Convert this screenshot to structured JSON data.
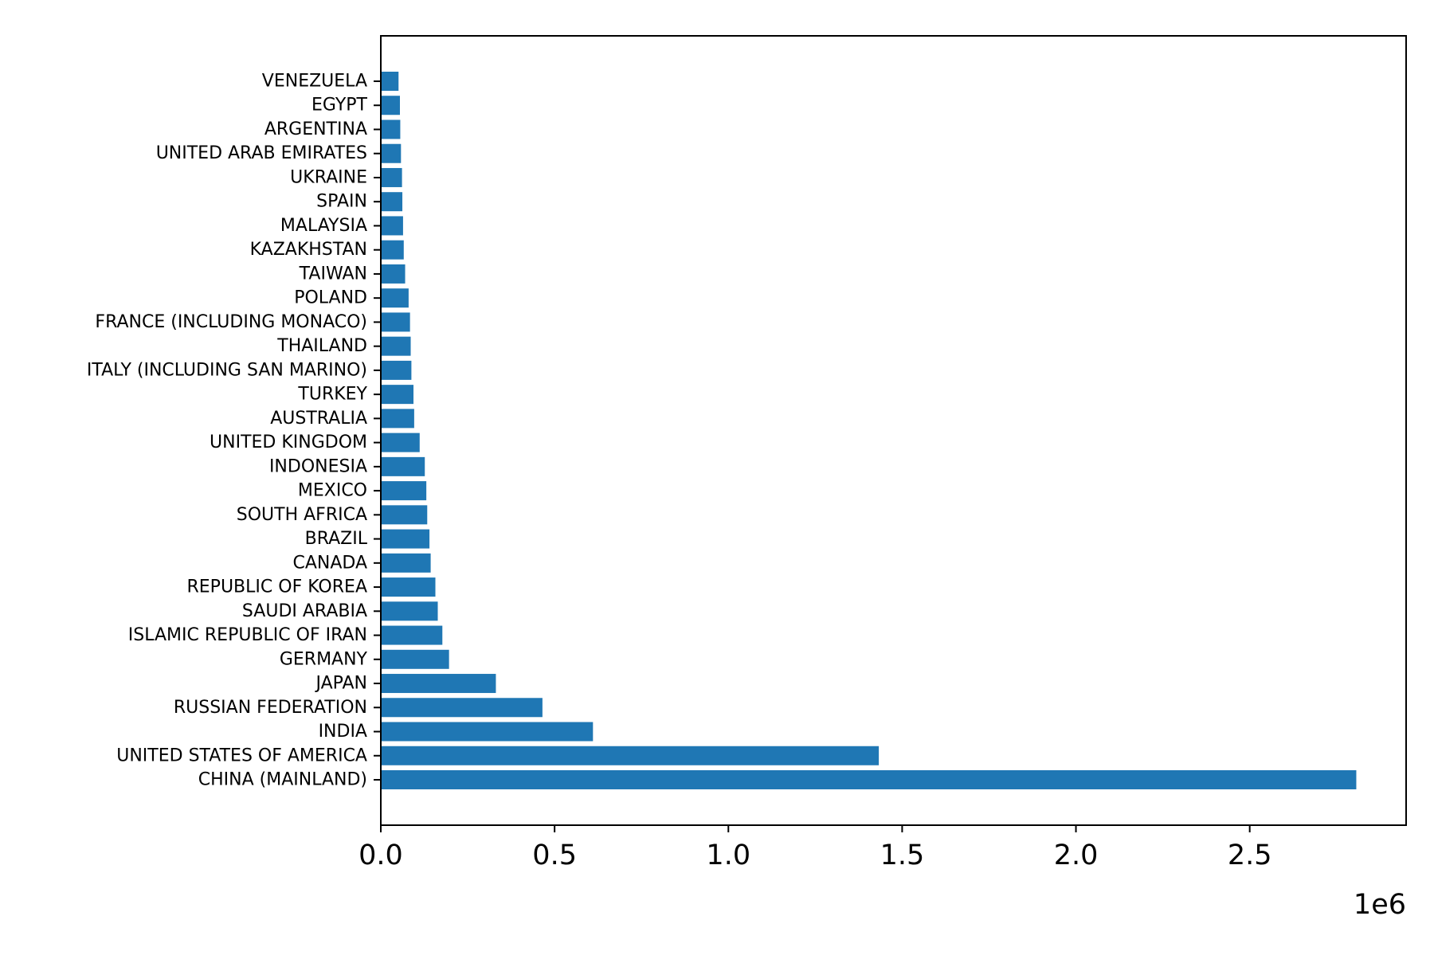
{
  "chart_data": {
    "type": "bar",
    "orientation": "horizontal",
    "title": "",
    "xlabel": "",
    "ylabel": "",
    "bar_color": "#1f77b4",
    "x_offset_label": "1e6",
    "x_scale": 1000000,
    "xlim": [
      0,
      2.95
    ],
    "x_ticks": [
      0.0,
      0.5,
      1.0,
      1.5,
      2.0,
      2.5
    ],
    "x_tick_labels": [
      "0.0",
      "0.5",
      "1.0",
      "1.5",
      "2.0",
      "2.5"
    ],
    "grid": false,
    "legend": "none",
    "categories": [
      "CHINA (MAINLAND)",
      "UNITED STATES OF AMERICA",
      "INDIA",
      "RUSSIAN FEDERATION",
      "JAPAN",
      "GERMANY",
      "ISLAMIC REPUBLIC OF IRAN",
      "SAUDI ARABIA",
      "REPUBLIC OF KOREA",
      "CANADA",
      "BRAZIL",
      "SOUTH AFRICA",
      "MEXICO",
      "INDONESIA",
      "UNITED KINGDOM",
      "AUSTRALIA",
      "TURKEY",
      "ITALY (INCLUDING SAN MARINO)",
      "THAILAND",
      "FRANCE (INCLUDING MONACO)",
      "POLAND",
      "TAIWAN",
      "KAZAKHSTAN",
      "MALAYSIA",
      "SPAIN",
      "UKRAINE",
      "UNITED ARAB EMIRATES",
      "ARGENTINA",
      "EGYPT",
      "VENEZUELA"
    ],
    "values": [
      2806634,
      1432855,
      610411,
      465052,
      331074,
      196314,
      177115,
      163907,
      157034,
      143479,
      140000,
      133562,
      130971,
      126582,
      111814,
      96000,
      94000,
      88000,
      86000,
      84000,
      80000,
      70000,
      66000,
      64000,
      62000,
      61000,
      58000,
      56000,
      55000,
      51000
    ]
  }
}
